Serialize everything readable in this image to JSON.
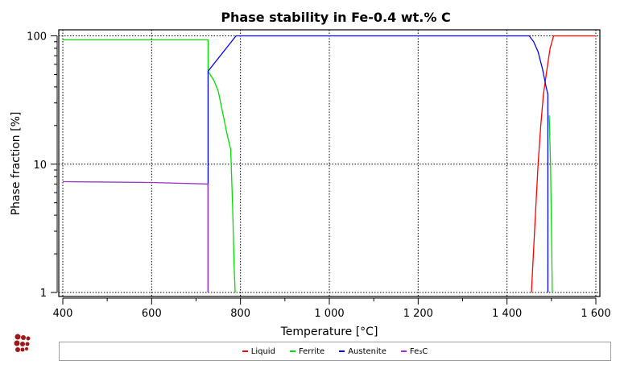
{
  "chart_data": {
    "type": "line",
    "title": "Phase stability in Fe-0.4 wt.% C",
    "xlabel": "Temperature [°C]",
    "ylabel": "Phase fraction [%]",
    "xlim": [
      400,
      1600
    ],
    "ylim": [
      1,
      100
    ],
    "yscale": "log",
    "grid": true,
    "xticks": [
      {
        "v": 400,
        "label": "400"
      },
      {
        "v": 600,
        "label": "600"
      },
      {
        "v": 800,
        "label": "800"
      },
      {
        "v": 1000,
        "label": "1 000"
      },
      {
        "v": 1200,
        "label": "1 200"
      },
      {
        "v": 1400,
        "label": "1 400"
      },
      {
        "v": 1600,
        "label": "1 600"
      }
    ],
    "yticks": [
      {
        "v": 1,
        "label": "1"
      },
      {
        "v": 10,
        "label": "10"
      },
      {
        "v": 100,
        "label": "100"
      }
    ],
    "legend_position": "bottom",
    "series": [
      {
        "name": "Liquid",
        "color": "#ff0000",
        "points": [
          [
            1455,
            1
          ],
          [
            1462,
            3
          ],
          [
            1470,
            10
          ],
          [
            1476,
            20
          ],
          [
            1482,
            35
          ],
          [
            1490,
            55
          ],
          [
            1497,
            80
          ],
          [
            1505,
            100
          ],
          [
            1600,
            100
          ]
        ]
      },
      {
        "name": "Ferrite",
        "color": "#00e000",
        "segments": [
          [
            [
              400,
              93
            ],
            [
              727,
              93
            ],
            [
              727,
              53
            ],
            [
              740,
              45
            ],
            [
              750,
              37
            ],
            [
              760,
              25
            ],
            [
              770,
              17
            ],
            [
              778,
              13
            ],
            [
              782,
              5
            ],
            [
              786,
              1.5
            ],
            [
              788,
              1
            ]
          ],
          [
            [
              1495,
              24
            ],
            [
              1498,
              10
            ],
            [
              1502,
              1
            ]
          ]
        ]
      },
      {
        "name": "Austenite",
        "color": "#0000ff",
        "points": [
          [
            727,
            1
          ],
          [
            727,
            53
          ],
          [
            790,
            100
          ],
          [
            1450,
            100
          ],
          [
            1460,
            90
          ],
          [
            1470,
            75
          ],
          [
            1480,
            55
          ],
          [
            1488,
            40
          ],
          [
            1492,
            35
          ],
          [
            1492,
            1
          ]
        ]
      },
      {
        "name": "Fe₃C",
        "color": "#9933cc",
        "points": [
          [
            400,
            7.3
          ],
          [
            600,
            7.2
          ],
          [
            727,
            7.0
          ],
          [
            727,
            1
          ]
        ]
      }
    ]
  }
}
